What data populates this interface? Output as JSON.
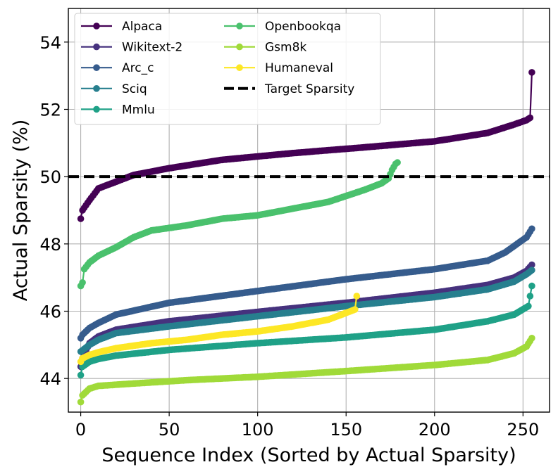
{
  "chart_data": {
    "type": "line",
    "xlabel": "Sequence Index (Sorted by Actual Sparsity)",
    "ylabel": "Actual Sparsity (%)",
    "xlim": [
      -7,
      265
    ],
    "ylim": [
      43,
      55
    ],
    "xticks": [
      0,
      50,
      100,
      150,
      200,
      250
    ],
    "yticks": [
      44,
      46,
      48,
      50,
      52,
      54
    ],
    "xtick_labels": [
      "0",
      "50",
      "100",
      "150",
      "200",
      "250"
    ],
    "ytick_labels": [
      "44",
      "46",
      "48",
      "50",
      "52",
      "54"
    ],
    "grid": true,
    "legend_position": "top-left",
    "target_line": {
      "name": "Target Sparsity",
      "value": 50,
      "color": "#000000"
    },
    "series": [
      {
        "name": "Alpaca",
        "color": "#440154",
        "n": 256,
        "knots": [
          [
            0,
            48.75
          ],
          [
            1,
            49.0
          ],
          [
            5,
            49.3
          ],
          [
            10,
            49.65
          ],
          [
            20,
            49.85
          ],
          [
            30,
            50.05
          ],
          [
            50,
            50.25
          ],
          [
            80,
            50.5
          ],
          [
            120,
            50.7
          ],
          [
            160,
            50.87
          ],
          [
            200,
            51.05
          ],
          [
            230,
            51.3
          ],
          [
            245,
            51.55
          ],
          [
            252,
            51.68
          ],
          [
            254,
            51.75
          ],
          [
            255,
            53.1
          ]
        ]
      },
      {
        "name": "Wikitext-2",
        "color": "#46327e",
        "n": 256,
        "knots": [
          [
            0,
            44.35
          ],
          [
            1,
            44.6
          ],
          [
            5,
            45.05
          ],
          [
            10,
            45.25
          ],
          [
            20,
            45.45
          ],
          [
            50,
            45.7
          ],
          [
            100,
            45.98
          ],
          [
            150,
            46.25
          ],
          [
            200,
            46.55
          ],
          [
            230,
            46.78
          ],
          [
            245,
            47.0
          ],
          [
            252,
            47.2
          ],
          [
            255,
            47.38
          ]
        ]
      },
      {
        "name": "Arc_c",
        "color": "#365c8d",
        "n": 256,
        "knots": [
          [
            0,
            45.2
          ],
          [
            1,
            45.3
          ],
          [
            5,
            45.5
          ],
          [
            10,
            45.65
          ],
          [
            20,
            45.9
          ],
          [
            50,
            46.25
          ],
          [
            100,
            46.6
          ],
          [
            150,
            46.95
          ],
          [
            200,
            47.25
          ],
          [
            230,
            47.5
          ],
          [
            240,
            47.75
          ],
          [
            248,
            48.05
          ],
          [
            252,
            48.2
          ],
          [
            255,
            48.45
          ]
        ]
      },
      {
        "name": "Sciq",
        "color": "#277f8e",
        "n": 256,
        "knots": [
          [
            0,
            44.8
          ],
          [
            5,
            45.0
          ],
          [
            10,
            45.15
          ],
          [
            20,
            45.35
          ],
          [
            50,
            45.55
          ],
          [
            100,
            45.85
          ],
          [
            150,
            46.15
          ],
          [
            200,
            46.42
          ],
          [
            230,
            46.65
          ],
          [
            245,
            46.88
          ],
          [
            252,
            47.1
          ],
          [
            255,
            47.22
          ]
        ]
      },
      {
        "name": "Mmlu",
        "color": "#1fa187",
        "n": 256,
        "knots": [
          [
            0,
            44.1
          ],
          [
            1,
            44.35
          ],
          [
            5,
            44.5
          ],
          [
            10,
            44.58
          ],
          [
            20,
            44.68
          ],
          [
            50,
            44.85
          ],
          [
            100,
            45.05
          ],
          [
            150,
            45.22
          ],
          [
            200,
            45.45
          ],
          [
            230,
            45.7
          ],
          [
            245,
            45.9
          ],
          [
            253,
            46.15
          ],
          [
            255,
            46.75
          ]
        ]
      },
      {
        "name": "Openbookqa",
        "color": "#4ac16d",
        "n": 180,
        "knots": [
          [
            0,
            46.75
          ],
          [
            1,
            46.85
          ],
          [
            2,
            47.25
          ],
          [
            5,
            47.45
          ],
          [
            10,
            47.65
          ],
          [
            20,
            47.9
          ],
          [
            30,
            48.2
          ],
          [
            40,
            48.4
          ],
          [
            60,
            48.55
          ],
          [
            80,
            48.75
          ],
          [
            100,
            48.85
          ],
          [
            120,
            49.05
          ],
          [
            140,
            49.25
          ],
          [
            160,
            49.6
          ],
          [
            170,
            49.8
          ],
          [
            174,
            49.95
          ],
          [
            176,
            50.2
          ],
          [
            178,
            50.38
          ],
          [
            179,
            50.42
          ]
        ]
      },
      {
        "name": "Gsm8k",
        "color": "#a0da39",
        "n": 256,
        "knots": [
          [
            0,
            43.3
          ],
          [
            1,
            43.5
          ],
          [
            5,
            43.7
          ],
          [
            10,
            43.78
          ],
          [
            30,
            43.85
          ],
          [
            60,
            43.95
          ],
          [
            100,
            44.05
          ],
          [
            150,
            44.22
          ],
          [
            200,
            44.4
          ],
          [
            230,
            44.55
          ],
          [
            245,
            44.75
          ],
          [
            252,
            44.95
          ],
          [
            255,
            45.2
          ]
        ]
      },
      {
        "name": "Humaneval",
        "color": "#fde725",
        "n": 157,
        "knots": [
          [
            0,
            44.5
          ],
          [
            1,
            44.6
          ],
          [
            5,
            44.7
          ],
          [
            10,
            44.78
          ],
          [
            20,
            44.9
          ],
          [
            40,
            45.05
          ],
          [
            60,
            45.15
          ],
          [
            80,
            45.3
          ],
          [
            100,
            45.4
          ],
          [
            120,
            45.55
          ],
          [
            140,
            45.75
          ],
          [
            150,
            45.95
          ],
          [
            155,
            46.05
          ],
          [
            156,
            46.45
          ]
        ]
      }
    ]
  }
}
